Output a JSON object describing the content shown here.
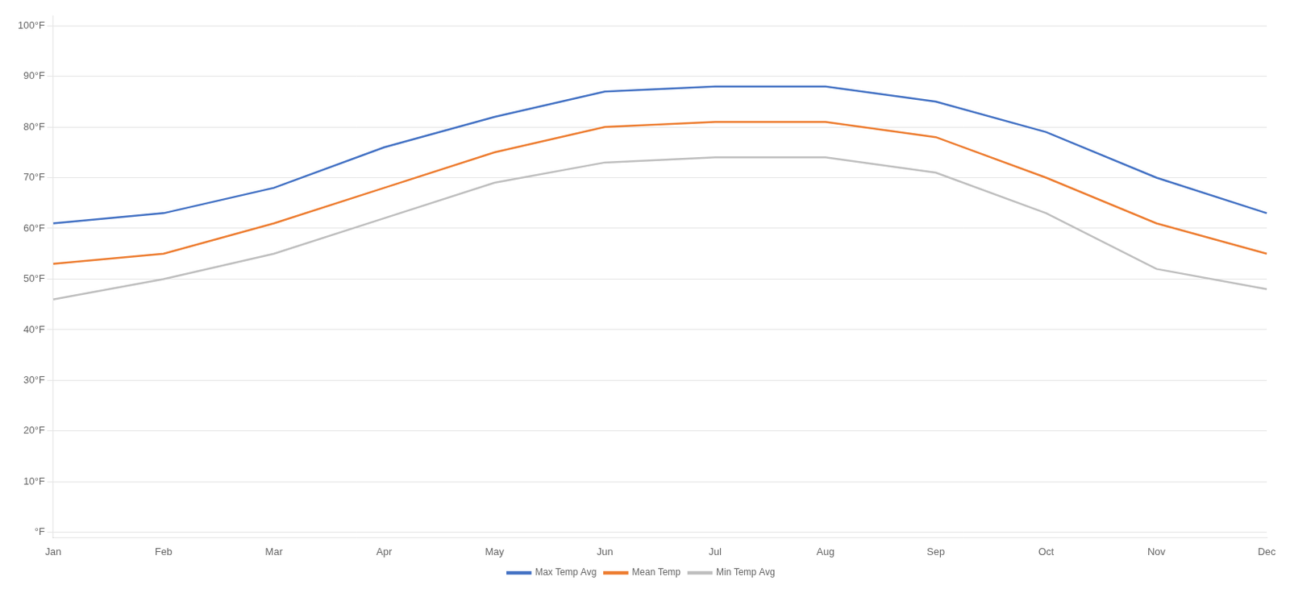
{
  "chart_data": {
    "type": "line",
    "categories": [
      "Jan",
      "Feb",
      "Mar",
      "Apr",
      "May",
      "Jun",
      "Jul",
      "Aug",
      "Sep",
      "Oct",
      "Nov",
      "Dec"
    ],
    "series": [
      {
        "name": "Max Temp Avg",
        "color": "#4472C4",
        "values": [
          61,
          63,
          68,
          76,
          82,
          87,
          88,
          88,
          85,
          79,
          70,
          63
        ]
      },
      {
        "name": "Mean Temp",
        "color": "#ED7D31",
        "values": [
          53,
          55,
          61,
          68,
          75,
          80,
          81,
          81,
          78,
          70,
          61,
          55
        ]
      },
      {
        "name": "Min Temp Avg",
        "color": "#BFBFBF",
        "values": [
          46,
          50,
          55,
          62,
          69,
          73,
          74,
          74,
          71,
          63,
          52,
          48
        ]
      }
    ],
    "ylim": [
      -1,
      102
    ],
    "yticks": [
      {
        "value": 0,
        "label": "°F"
      },
      {
        "value": 10,
        "label": "10°F"
      },
      {
        "value": 20,
        "label": "20°F"
      },
      {
        "value": 30,
        "label": "30°F"
      },
      {
        "value": 40,
        "label": "40°F"
      },
      {
        "value": 50,
        "label": "50°F"
      },
      {
        "value": 60,
        "label": "60°F"
      },
      {
        "value": 70,
        "label": "70°F"
      },
      {
        "value": 80,
        "label": "80°F"
      },
      {
        "value": 90,
        "label": "90°F"
      },
      {
        "value": 100,
        "label": "100°F"
      }
    ],
    "grid": "y",
    "legend": "bottom",
    "marker": "none"
  }
}
